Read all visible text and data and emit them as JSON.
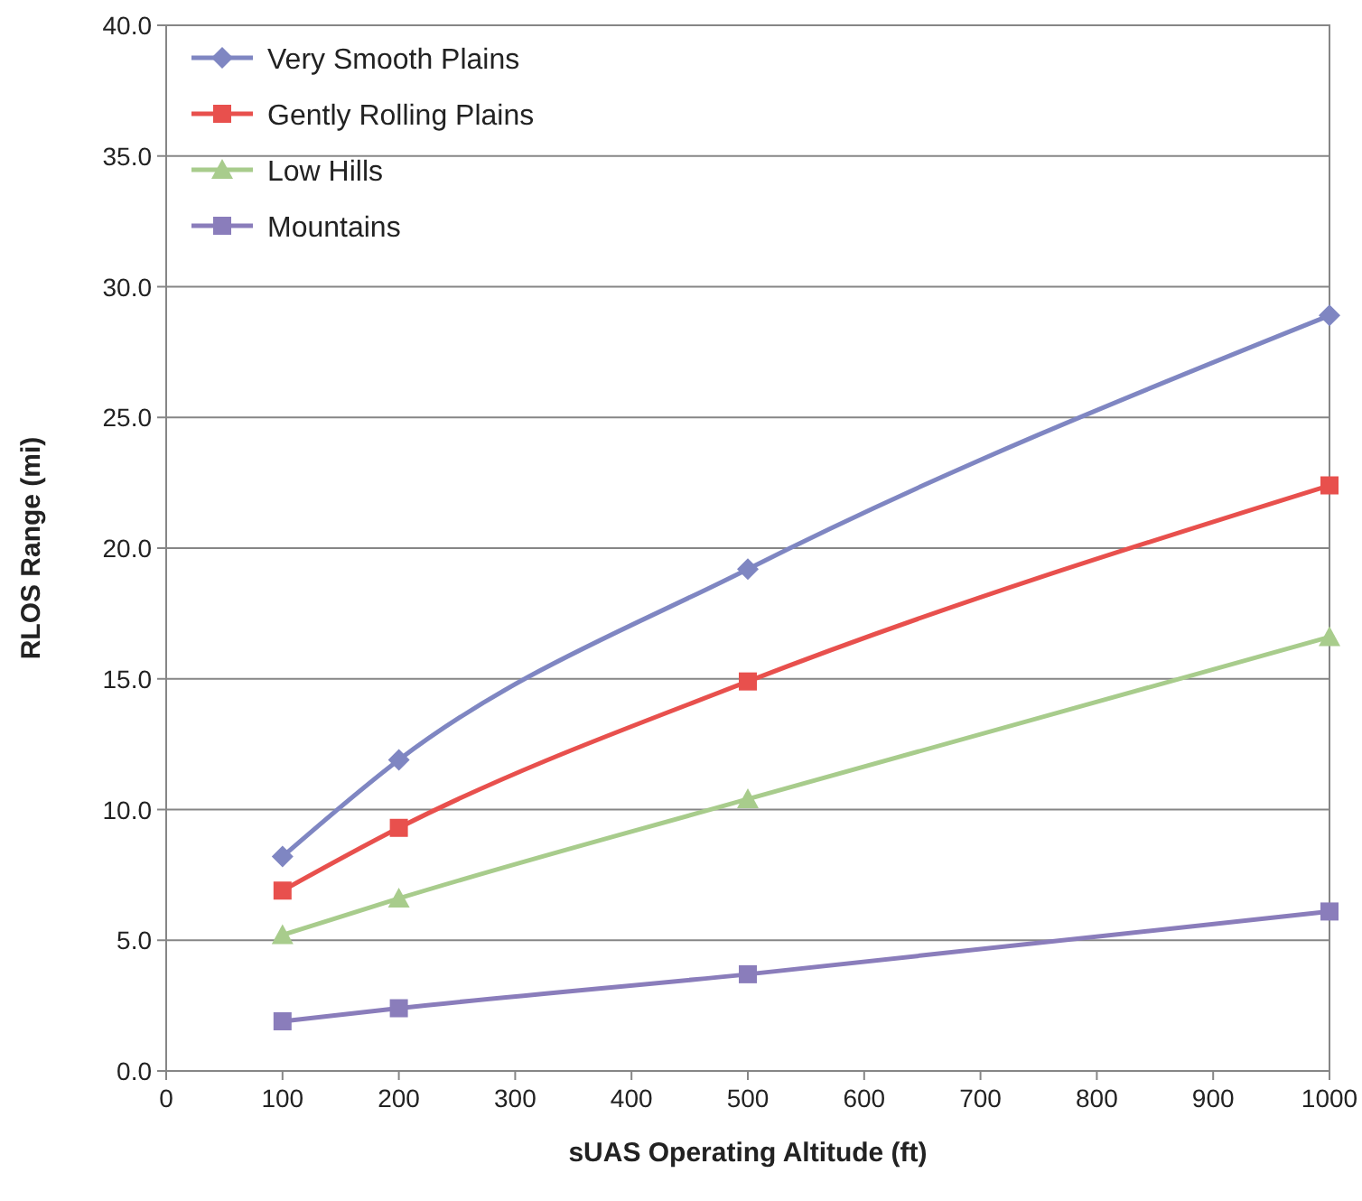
{
  "chart_data": {
    "type": "line",
    "xlabel": "sUAS Operating Altitude (ft)",
    "ylabel": "RLOS Range (mi)",
    "x": [
      100,
      200,
      500,
      1000
    ],
    "series": [
      {
        "name": "Very Smooth Plains",
        "color": "#7f86c2",
        "marker": "diamond",
        "values": [
          8.2,
          11.9,
          19.2,
          28.9
        ]
      },
      {
        "name": "Gently Rolling Plains",
        "color": "#e8504d",
        "marker": "square",
        "values": [
          6.9,
          9.3,
          14.9,
          22.4
        ]
      },
      {
        "name": "Low Hills",
        "color": "#a8cc8c",
        "marker": "triangle",
        "values": [
          5.2,
          6.6,
          10.4,
          16.6
        ]
      },
      {
        "name": "Mountains",
        "color": "#8a7dbb",
        "marker": "square",
        "values": [
          1.9,
          2.4,
          3.7,
          6.1
        ]
      }
    ],
    "xlim": [
      0,
      1000
    ],
    "xticks": [
      0,
      100,
      200,
      300,
      400,
      500,
      600,
      700,
      800,
      900,
      1000
    ],
    "ylim": [
      0,
      40
    ],
    "yticks": [
      {
        "value": 0,
        "label": "0.0"
      },
      {
        "value": 5,
        "label": "5.0"
      },
      {
        "value": 10,
        "label": "10.0"
      },
      {
        "value": 15,
        "label": "15.0"
      },
      {
        "value": 20,
        "label": "20.0"
      },
      {
        "value": 25,
        "label": "25.0"
      },
      {
        "value": 30,
        "label": "30.0"
      },
      {
        "value": 35,
        "label": "35.0"
      },
      {
        "value": 40,
        "label": "40.0"
      }
    ],
    "grid": "y",
    "legend": "top left"
  }
}
